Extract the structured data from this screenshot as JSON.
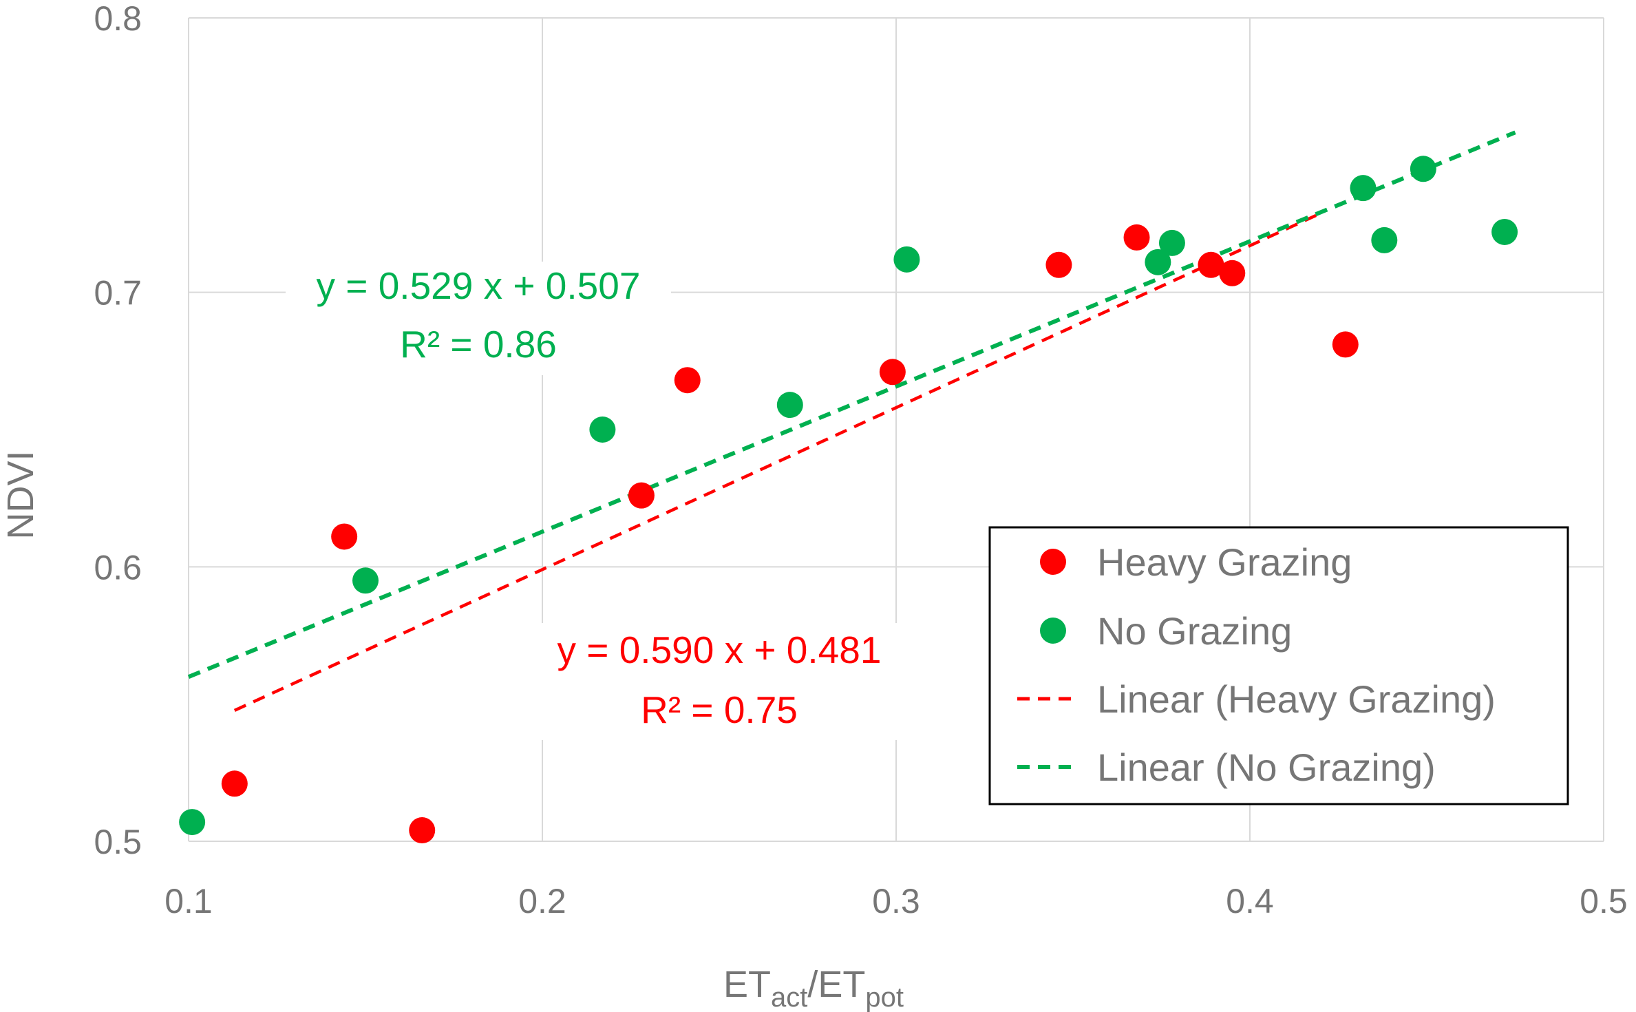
{
  "chart_data": {
    "type": "scatter",
    "title": "",
    "xlabel": {
      "base1": "ET",
      "sub1": "act",
      "sep": "/ET",
      "sub2": "pot"
    },
    "ylabel": "NDVI",
    "xlim": [
      0.1,
      0.5
    ],
    "ylim": [
      0.5,
      0.8
    ],
    "xticks": [
      0.1,
      0.2,
      0.3,
      0.4,
      0.5
    ],
    "yticks": [
      0.5,
      0.6,
      0.7,
      0.8
    ],
    "xtick_labels": [
      "0.1",
      "0.2",
      "0.3",
      "0.4",
      "0.5"
    ],
    "ytick_labels": [
      "0.5",
      "0.6",
      "0.7",
      "0.8"
    ],
    "grid": true,
    "legend_position": "lower-right",
    "series": [
      {
        "name": "Heavy Grazing",
        "color": "#ff0000",
        "points": [
          [
            0.113,
            0.521
          ],
          [
            0.144,
            0.611
          ],
          [
            0.166,
            0.504
          ],
          [
            0.228,
            0.626
          ],
          [
            0.241,
            0.668
          ],
          [
            0.299,
            0.671
          ],
          [
            0.346,
            0.71
          ],
          [
            0.368,
            0.72
          ],
          [
            0.389,
            0.71
          ],
          [
            0.395,
            0.707
          ],
          [
            0.427,
            0.681
          ]
        ]
      },
      {
        "name": "No Grazing",
        "color": "#00b050",
        "points": [
          [
            0.101,
            0.507
          ],
          [
            0.15,
            0.595
          ],
          [
            0.217,
            0.65
          ],
          [
            0.27,
            0.659
          ],
          [
            0.303,
            0.712
          ],
          [
            0.374,
            0.711
          ],
          [
            0.378,
            0.718
          ],
          [
            0.432,
            0.738
          ],
          [
            0.438,
            0.719
          ],
          [
            0.449,
            0.745
          ],
          [
            0.472,
            0.722
          ]
        ]
      }
    ],
    "trendlines": [
      {
        "name": "Linear (Heavy Grazing)",
        "color": "#ff0000",
        "slope": 0.59,
        "intercept": 0.481,
        "x_range": [
          0.113,
          0.42
        ]
      },
      {
        "name": "Linear (No Grazing)",
        "color": "#00b050",
        "slope": 0.529,
        "intercept": 0.507,
        "x_range": [
          0.1,
          0.475
        ]
      }
    ],
    "annotations": [
      {
        "id": "no-grazing",
        "color": "#00b050",
        "equation": "y = 0.529 x + 0.507",
        "r2": "R² = 0.86"
      },
      {
        "id": "heavy-grazing",
        "color": "#ff0000",
        "equation": "y = 0.590 x + 0.481",
        "r2": "R² = 0.75"
      }
    ],
    "legend": [
      {
        "label": "Heavy Grazing",
        "kind": "marker",
        "color": "#ff0000"
      },
      {
        "label": "No Grazing",
        "kind": "marker",
        "color": "#00b050"
      },
      {
        "label": "Linear (Heavy Grazing)",
        "kind": "dash",
        "color": "#ff0000"
      },
      {
        "label": "Linear (No Grazing)",
        "kind": "dash",
        "color": "#00b050"
      }
    ]
  }
}
